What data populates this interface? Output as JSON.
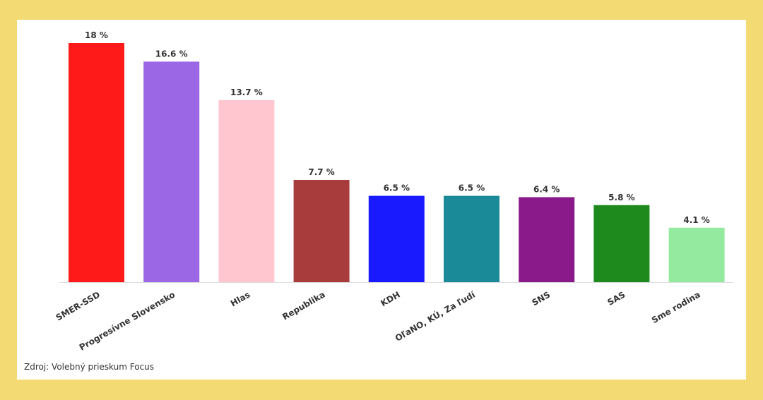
{
  "chart_data": {
    "type": "bar",
    "categories": [
      "SMER-SSD",
      "Progresívne Slovensko",
      "Hlas",
      "Republika",
      "KDH",
      "OľaNO, KÚ, Za ľudí",
      "SNS",
      "SAS",
      "Sme rodina"
    ],
    "values": [
      18,
      16.6,
      13.7,
      7.7,
      6.5,
      6.5,
      6.4,
      5.8,
      4.1
    ],
    "value_labels": [
      "18 %",
      "16.6 %",
      "13.7 %",
      "7.7 %",
      "6.5 %",
      "6.5 %",
      "6.4 %",
      "5.8 %",
      "4.1 %"
    ],
    "colors": [
      "#ff1a1a",
      "#9c67e4",
      "#ffc6d0",
      "#a83c3c",
      "#1a1aff",
      "#1a8a98",
      "#8a1a8a",
      "#1e8a1e",
      "#94eba0"
    ],
    "source": "Zdroj: Volebný prieskum Focus"
  }
}
